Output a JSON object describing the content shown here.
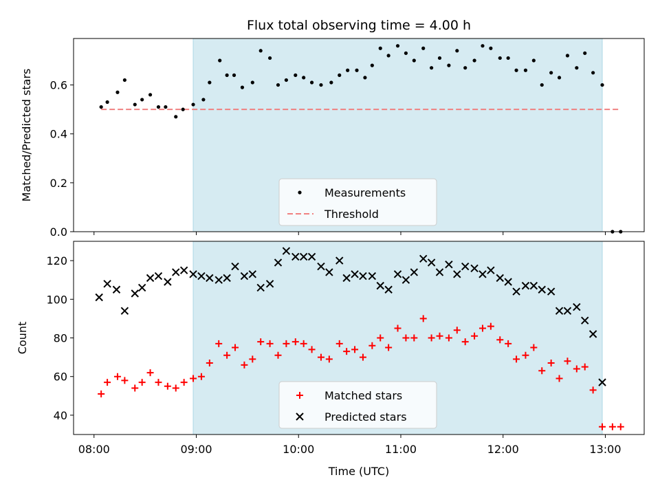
{
  "chart_data": {
    "title": "Flux total observing time = 4.00 h",
    "type": "scatter",
    "shared_x": {
      "label": "Time (UTC)",
      "range_hours": [
        7.8,
        13.38
      ],
      "ticks": [
        {
          "value": 8,
          "label": "08:00"
        },
        {
          "value": 9,
          "label": "09:00"
        },
        {
          "value": 10,
          "label": "10:00"
        },
        {
          "value": 11,
          "label": "11:00"
        },
        {
          "value": 12,
          "label": "12:00"
        },
        {
          "value": 13,
          "label": "13:00"
        }
      ]
    },
    "observing_window_hours": [
      8.97,
      12.97
    ],
    "colors": {
      "window": "#add8e6",
      "measurements": "#000000",
      "threshold": "#f08080",
      "matched": "#ff0000",
      "predicted": "#000000"
    },
    "panels": [
      {
        "ylabel": "Matched/Predicted stars",
        "ylim": [
          0.0,
          0.79
        ],
        "yticks": [
          {
            "value": 0.0,
            "label": "0.0"
          },
          {
            "value": 0.2,
            "label": "0.2"
          },
          {
            "value": 0.4,
            "label": "0.4"
          },
          {
            "value": 0.6,
            "label": "0.6"
          }
        ],
        "legend_position": "bottom-center",
        "legend": [
          {
            "label": "Measurements",
            "marker": "dot"
          },
          {
            "label": "Threshold",
            "marker": "dashed-line"
          }
        ],
        "threshold": {
          "value": 0.5,
          "x_range": [
            8.07,
            13.15
          ]
        },
        "series": [
          {
            "name": "Measurements",
            "marker": "dot",
            "x": [
              8.07,
              8.13,
              8.23,
              8.3,
              8.4,
              8.47,
              8.55,
              8.63,
              8.7,
              8.8,
              8.87,
              8.97,
              9.07,
              9.13,
              9.23,
              9.3,
              9.37,
              9.45,
              9.55,
              9.63,
              9.72,
              9.8,
              9.88,
              9.97,
              10.05,
              10.13,
              10.22,
              10.32,
              10.4,
              10.48,
              10.57,
              10.65,
              10.72,
              10.8,
              10.88,
              10.97,
              11.05,
              11.13,
              11.22,
              11.3,
              11.38,
              11.47,
              11.55,
              11.63,
              11.72,
              11.8,
              11.88,
              11.97,
              12.05,
              12.13,
              12.22,
              12.3,
              12.38,
              12.47,
              12.55,
              12.63,
              12.72,
              12.8,
              12.88,
              12.97,
              13.07,
              13.15
            ],
            "y": [
              0.51,
              0.53,
              0.57,
              0.62,
              0.52,
              0.54,
              0.56,
              0.51,
              0.51,
              0.47,
              0.5,
              0.52,
              0.54,
              0.61,
              0.7,
              0.64,
              0.64,
              0.59,
              0.61,
              0.74,
              0.71,
              0.6,
              0.62,
              0.64,
              0.63,
              0.61,
              0.6,
              0.61,
              0.64,
              0.66,
              0.66,
              0.63,
              0.68,
              0.75,
              0.72,
              0.76,
              0.73,
              0.7,
              0.75,
              0.67,
              0.71,
              0.68,
              0.74,
              0.67,
              0.7,
              0.76,
              0.75,
              0.71,
              0.71,
              0.66,
              0.66,
              0.7,
              0.6,
              0.65,
              0.63,
              0.72,
              0.67,
              0.73,
              0.65,
              0.6,
              0.0,
              0.0
            ]
          }
        ]
      },
      {
        "ylabel": "Count",
        "ylim": [
          30,
          130
        ],
        "yticks": [
          {
            "value": 40,
            "label": "40"
          },
          {
            "value": 60,
            "label": "60"
          },
          {
            "value": 80,
            "label": "80"
          },
          {
            "value": 100,
            "label": "100"
          },
          {
            "value": 120,
            "label": "120"
          }
        ],
        "legend_position": "bottom-center",
        "legend": [
          {
            "label": "Matched stars",
            "marker": "plus"
          },
          {
            "label": "Predicted stars",
            "marker": "x"
          }
        ],
        "series": [
          {
            "name": "Matched stars",
            "marker": "plus",
            "x": [
              8.07,
              8.13,
              8.23,
              8.3,
              8.4,
              8.47,
              8.55,
              8.63,
              8.72,
              8.8,
              8.88,
              8.97,
              9.05,
              9.13,
              9.22,
              9.3,
              9.38,
              9.47,
              9.55,
              9.63,
              9.72,
              9.8,
              9.88,
              9.97,
              10.05,
              10.13,
              10.22,
              10.3,
              10.4,
              10.47,
              10.55,
              10.63,
              10.72,
              10.8,
              10.88,
              10.97,
              11.05,
              11.13,
              11.22,
              11.3,
              11.38,
              11.47,
              11.55,
              11.63,
              11.72,
              11.8,
              11.88,
              11.97,
              12.05,
              12.13,
              12.22,
              12.3,
              12.38,
              12.47,
              12.55,
              12.63,
              12.72,
              12.8,
              12.88,
              12.97,
              13.07,
              13.15
            ],
            "y": [
              51,
              57,
              60,
              58,
              54,
              57,
              62,
              57,
              55,
              54,
              57,
              59,
              60,
              67,
              77,
              71,
              75,
              66,
              69,
              78,
              77,
              71,
              77,
              78,
              77,
              74,
              70,
              69,
              77,
              73,
              74,
              70,
              76,
              80,
              75,
              85,
              80,
              80,
              90,
              80,
              81,
              80,
              84,
              78,
              81,
              85,
              86,
              79,
              77,
              69,
              71,
              75,
              63,
              67,
              59,
              68,
              64,
              65,
              53,
              34,
              34,
              34
            ]
          },
          {
            "name": "Predicted stars",
            "marker": "x",
            "x": [
              8.05,
              8.13,
              8.22,
              8.3,
              8.4,
              8.47,
              8.55,
              8.63,
              8.72,
              8.8,
              8.88,
              8.97,
              9.05,
              9.13,
              9.22,
              9.3,
              9.38,
              9.47,
              9.55,
              9.63,
              9.72,
              9.8,
              9.88,
              9.97,
              10.05,
              10.13,
              10.22,
              10.3,
              10.4,
              10.47,
              10.55,
              10.63,
              10.72,
              10.8,
              10.88,
              10.97,
              11.05,
              11.13,
              11.22,
              11.3,
              11.38,
              11.47,
              11.55,
              11.63,
              11.72,
              11.8,
              11.88,
              11.97,
              12.05,
              12.13,
              12.22,
              12.3,
              12.38,
              12.47,
              12.55,
              12.63,
              12.72,
              12.8,
              12.88,
              12.97
            ],
            "y": [
              101,
              108,
              105,
              94,
              103,
              106,
              111,
              112,
              109,
              114,
              115,
              113,
              112,
              111,
              110,
              111,
              117,
              112,
              113,
              106,
              108,
              119,
              125,
              122,
              122,
              122,
              117,
              114,
              120,
              111,
              113,
              112,
              112,
              107,
              105,
              113,
              110,
              114,
              121,
              119,
              114,
              118,
              113,
              117,
              116,
              113,
              115,
              111,
              109,
              104,
              107,
              107,
              105,
              104,
              94,
              94,
              96,
              89,
              82,
              57
            ]
          }
        ]
      }
    ]
  }
}
